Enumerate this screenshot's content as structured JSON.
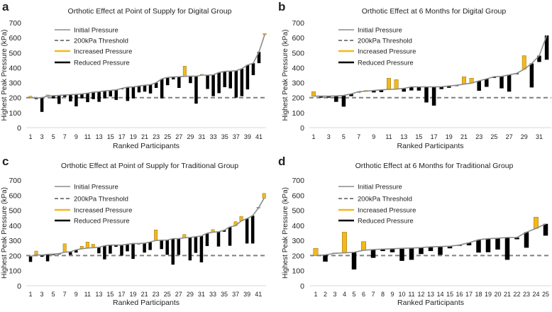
{
  "chart_data": [
    {
      "panel_label": "a",
      "type": "bar",
      "title": "Orthotic Effect at Point of Supply for Digital Group",
      "xlabel": "Ranked Participants",
      "ylabel": "Highest Peak Pressure (kPa)",
      "ylim": [
        0,
        700
      ],
      "yticks": [
        "0",
        "100",
        "200",
        "300",
        "400",
        "500",
        "600",
        "700"
      ],
      "x_tick_labels": [
        "1",
        "3",
        "5",
        "7",
        "9",
        "11",
        "13",
        "15",
        "17",
        "19",
        "21",
        "23",
        "25",
        "27",
        "29",
        "31",
        "33",
        "35",
        "37",
        "39",
        "41"
      ],
      "threshold": 200,
      "legend": [
        "Initial Pressure",
        "200kPa Threshold",
        "Increased Pressure",
        "Reduced Pressure"
      ],
      "initial": [
        200,
        197,
        200,
        210,
        213,
        215,
        218,
        220,
        222,
        225,
        230,
        237,
        240,
        245,
        248,
        252,
        262,
        270,
        272,
        278,
        283,
        287,
        300,
        325,
        335,
        338,
        340,
        342,
        343,
        343,
        350,
        350,
        352,
        368,
        375,
        377,
        380,
        393,
        418,
        430,
        505,
        620
      ],
      "after": [
        210,
        190,
        105,
        218,
        195,
        158,
        205,
        175,
        142,
        195,
        170,
        190,
        172,
        195,
        208,
        185,
        258,
        178,
        195,
        235,
        240,
        228,
        265,
        195,
        283,
        322,
        265,
        410,
        297,
        160,
        355,
        258,
        210,
        230,
        270,
        262,
        200,
        210,
        255,
        350,
        430,
        627
      ]
    },
    {
      "panel_label": "b",
      "type": "bar",
      "title": "Orthotic Effect at 6 Months for Digital Group",
      "xlabel": "Ranked Participants",
      "ylabel": "Highest Peak Pressure (kPa)",
      "ylim": [
        0,
        700
      ],
      "yticks": [
        "0",
        "100",
        "200",
        "300",
        "400",
        "500",
        "600",
        "700"
      ],
      "x_tick_labels": [
        "1",
        "3",
        "5",
        "7",
        "9",
        "11",
        "13",
        "15",
        "17",
        "19",
        "21",
        "23",
        "25",
        "27",
        "29",
        "31"
      ],
      "threshold": 200,
      "legend": [
        "Initial Pressure",
        "200kPa Threshold",
        "Increased Pressure",
        "Reduced Pressure"
      ],
      "initial": [
        210,
        210,
        210,
        212,
        215,
        225,
        240,
        243,
        248,
        252,
        255,
        257,
        262,
        272,
        272,
        272,
        272,
        273,
        278,
        283,
        290,
        297,
        312,
        325,
        340,
        342,
        352,
        362,
        390,
        428,
        480,
        615
      ],
      "after": [
        240,
        200,
        200,
        172,
        140,
        210,
        238,
        248,
        235,
        237,
        330,
        320,
        240,
        248,
        247,
        168,
        147,
        257,
        266,
        278,
        340,
        330,
        246,
        272,
        332,
        262,
        240,
        358,
        480,
        268,
        438,
        453
      ]
    },
    {
      "panel_label": "c",
      "type": "bar",
      "title": "Orthotic Effect at Point of Supply for Traditional Group",
      "xlabel": "Ranked Participants",
      "ylabel": "Highest Peak Pressure (kPa)",
      "ylim": [
        0,
        700
      ],
      "yticks": [
        "0",
        "100",
        "200",
        "300",
        "400",
        "500",
        "600",
        "700"
      ],
      "x_tick_labels": [
        "1",
        "3",
        "5",
        "7",
        "9",
        "11",
        "13",
        "15",
        "17",
        "19",
        "21",
        "23",
        "25",
        "27",
        "29",
        "31",
        "33",
        "35",
        "37",
        "39",
        "41"
      ],
      "threshold": 200,
      "legend": [
        "Initial Pressure",
        "200kPa Threshold",
        "Increased Pressure",
        "Reduced Pressure"
      ],
      "initial": [
        195,
        205,
        203,
        208,
        210,
        213,
        222,
        225,
        238,
        245,
        250,
        252,
        255,
        265,
        270,
        270,
        270,
        275,
        280,
        280,
        282,
        290,
        300,
        302,
        303,
        312,
        312,
        318,
        320,
        325,
        330,
        348,
        355,
        358,
        368,
        390,
        398,
        430,
        445,
        465,
        515,
        580
      ],
      "after": [
        158,
        230,
        192,
        162,
        203,
        210,
        278,
        205,
        220,
        262,
        290,
        275,
        215,
        175,
        213,
        258,
        200,
        228,
        178,
        278,
        220,
        237,
        370,
        243,
        205,
        140,
        205,
        340,
        168,
        218,
        155,
        263,
        372,
        260,
        358,
        265,
        425,
        460,
        280,
        280,
        520,
        612
      ]
    },
    {
      "panel_label": "d",
      "type": "bar",
      "title": "Orthotic Effect at 6 Months for Traditional Group",
      "xlabel": "Ranked Participants",
      "ylabel": "Highest Peak Pressure (kPa)",
      "ylim": [
        0,
        700
      ],
      "yticks": [
        "0",
        "100",
        "200",
        "300",
        "400",
        "500",
        "600",
        "700"
      ],
      "x_tick_labels": [
        "1",
        "2",
        "3",
        "4",
        "5",
        "6",
        "7",
        "8",
        "9",
        "10",
        "11",
        "12",
        "13",
        "14",
        "15",
        "16",
        "17",
        "18",
        "19",
        "20",
        "21",
        "22",
        "23",
        "24",
        "25"
      ],
      "threshold": 200,
      "legend": [
        "Initial Pressure",
        "200kPa Threshold",
        "Increased Pressure",
        "Reduced Pressure"
      ],
      "initial": [
        200,
        205,
        215,
        218,
        222,
        235,
        240,
        243,
        245,
        248,
        250,
        253,
        258,
        260,
        262,
        270,
        285,
        305,
        312,
        315,
        320,
        320,
        355,
        380,
        410
      ],
      "after": [
        248,
        160,
        218,
        355,
        108,
        293,
        185,
        230,
        222,
        165,
        172,
        210,
        230,
        205,
        248,
        265,
        268,
        220,
        222,
        240,
        172,
        308,
        252,
        455,
        332
      ]
    }
  ],
  "colors": {
    "initial": "#8c8c8c",
    "threshold": "#808080",
    "increased": "#f2b81c",
    "reduced": "#000000"
  }
}
